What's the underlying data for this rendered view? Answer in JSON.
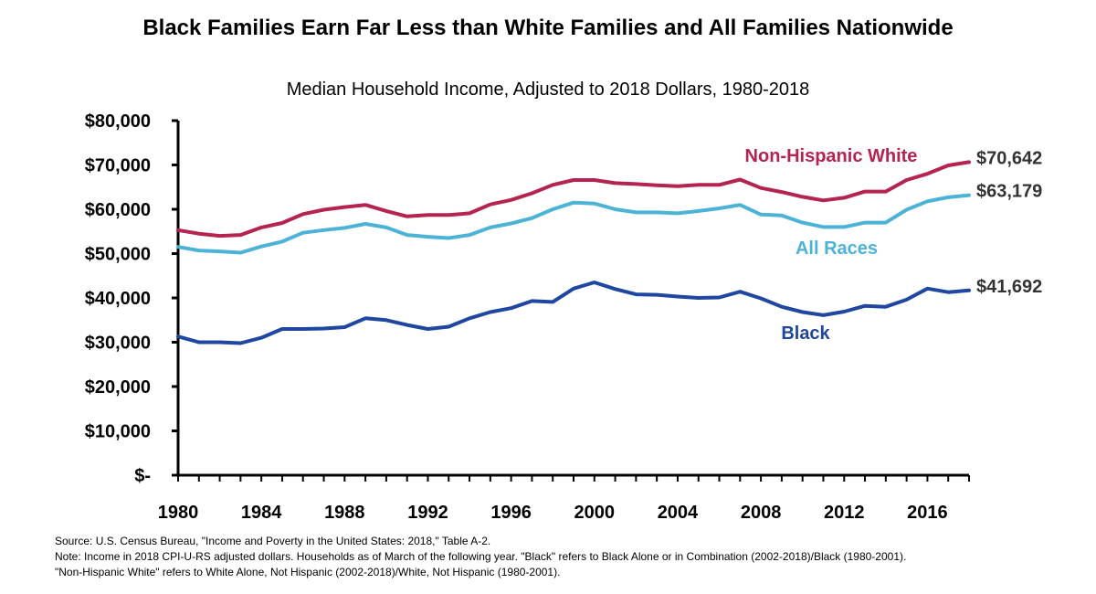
{
  "chart_data": {
    "type": "line",
    "title": "Black Families Earn Far Less than White Families and All Families Nationwide",
    "subtitle": "Median Household Income, Adjusted to 2018 Dollars, 1980-2018",
    "xlabel": "",
    "ylabel": "",
    "xlim": [
      1980,
      2018
    ],
    "ylim": [
      0,
      80000
    ],
    "x": [
      1980,
      1981,
      1982,
      1983,
      1984,
      1985,
      1986,
      1987,
      1988,
      1989,
      1990,
      1991,
      1992,
      1993,
      1994,
      1995,
      1996,
      1997,
      1998,
      1999,
      2000,
      2001,
      2002,
      2003,
      2004,
      2005,
      2006,
      2007,
      2008,
      2009,
      2010,
      2011,
      2012,
      2013,
      2014,
      2015,
      2016,
      2017,
      2018
    ],
    "x_ticks": [
      "1980",
      "1984",
      "1988",
      "1992",
      "1996",
      "2000",
      "2004",
      "2008",
      "2012",
      "2016"
    ],
    "y_ticks": [
      "$-",
      "$10,000",
      "$20,000",
      "$30,000",
      "$40,000",
      "$50,000",
      "$60,000",
      "$70,000",
      "$80,000"
    ],
    "grid": false,
    "legend": "inline labels",
    "series": [
      {
        "name": "Non-Hispanic White",
        "color": "#B5234F",
        "end_label": "$70,642",
        "values": [
          55300,
          54500,
          54000,
          54200,
          55900,
          56900,
          58900,
          59900,
          60500,
          61000,
          59600,
          58400,
          58700,
          58700,
          59100,
          61100,
          62100,
          63600,
          65500,
          66600,
          66600,
          65900,
          65700,
          65400,
          65200,
          65500,
          65500,
          66700,
          64800,
          63900,
          62800,
          62000,
          62600,
          64000,
          64000,
          66600,
          68000,
          69900,
          70642
        ]
      },
      {
        "name": "All Races",
        "color": "#4DB3D6",
        "end_label": "$63,179",
        "values": [
          51500,
          50700,
          50500,
          50200,
          51600,
          52700,
          54700,
          55300,
          55800,
          56700,
          55900,
          54200,
          53800,
          53500,
          54200,
          55900,
          56800,
          58000,
          60000,
          61500,
          61300,
          60000,
          59300,
          59300,
          59100,
          59600,
          60200,
          61000,
          58800,
          58600,
          57000,
          56000,
          56000,
          57000,
          57000,
          59900,
          61800,
          62700,
          63179
        ]
      },
      {
        "name": "Black",
        "color": "#1F46A0",
        "end_label": "",
        "values": [
          31300,
          30000,
          30000,
          29800,
          31000,
          33000,
          33000,
          33100,
          33400,
          35400,
          35000,
          33900,
          33000,
          33500,
          35400,
          36800,
          37700,
          39300,
          39100,
          42100,
          43500,
          42000,
          40800,
          40700,
          40300,
          40000,
          40100,
          41400,
          39900,
          38000,
          36800,
          36100,
          36900,
          38200,
          38000,
          39600,
          42100,
          41300,
          41692
        ]
      }
    ],
    "annotations": {
      "black_end_label": "$41,692"
    }
  },
  "notes": {
    "source": "Source: U.S. Census Bureau, \"Income and Poverty in the United States: 2018,\" Table A-2.",
    "note1": "Note: Income in 2018 CPI-U-RS adjusted dollars. Households as of March of the following year. \"Black\" refers to Black Alone or in Combination (2002-2018)/Black (1980-2001).",
    "note2": "\"Non-Hispanic White\" refers to White Alone, Not Hispanic (2002-2018)/White, Not Hispanic (1980-2001)."
  }
}
